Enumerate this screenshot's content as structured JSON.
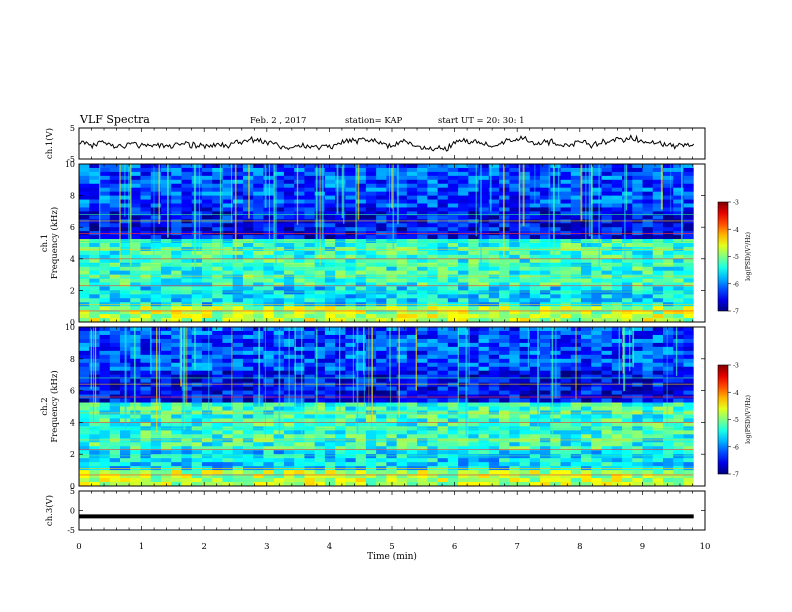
{
  "header": {
    "title": "VLF Spectra",
    "date": "Feb. 2 , 2017",
    "station": "station= KAP",
    "start": "start UT = 20: 30: 1"
  },
  "chart_data": {
    "type": "heatmap",
    "x_axis": {
      "label": "Time (min)",
      "range": [
        0,
        10
      ],
      "ticks": [
        0,
        1,
        2,
        3,
        4,
        5,
        6,
        7,
        8,
        9,
        10
      ],
      "tick_labels": [
        "0",
        "1",
        "2",
        "3",
        "4",
        "5",
        "6",
        "7",
        "8",
        "9",
        "10"
      ]
    },
    "panels": [
      {
        "id": "ch1-waveform",
        "type": "line",
        "ylabel": "ch.1(V)",
        "ylim": [
          -5,
          5
        ],
        "tick_labels": [
          "5",
          "-5"
        ],
        "baseline": 0,
        "amplitude": 1.5,
        "data_end": 9.82
      },
      {
        "id": "ch1-spectrogram",
        "type": "heatmap",
        "ylabel_line1": "ch.1",
        "ylabel_line2": "Frequency (kHz)",
        "ylim": [
          0,
          10
        ],
        "tick_labels": [
          "0",
          "2",
          "4",
          "6",
          "8",
          "10"
        ],
        "colorbar": {
          "label": "log(PSD)(V²/Hz)",
          "range": [
            -7,
            -3
          ],
          "tick_labels": [
            "-3",
            "-4",
            "-5",
            "-6",
            "-7"
          ]
        },
        "data_end": 9.82
      },
      {
        "id": "ch2-spectrogram",
        "type": "heatmap",
        "ylabel_line1": "ch.2",
        "ylabel_line2": "Frequency (kHz)",
        "ylim": [
          0,
          10
        ],
        "tick_labels": [
          "0",
          "2",
          "4",
          "6",
          "8",
          "10"
        ],
        "colorbar": {
          "label": "log(PSD)(V²/Hz)",
          "range": [
            -7,
            -3
          ],
          "tick_labels": [
            "-3",
            "-4",
            "-5",
            "-6",
            "-7"
          ]
        },
        "data_end": 9.82
      },
      {
        "id": "ch3-waveform",
        "type": "line",
        "ylabel": "ch.3(V)",
        "ylim": [
          -5,
          5
        ],
        "tick_labels": [
          "5",
          "0",
          "-5"
        ],
        "baseline": -1.5,
        "amplitude": 0,
        "data_end": 9.82
      }
    ]
  }
}
